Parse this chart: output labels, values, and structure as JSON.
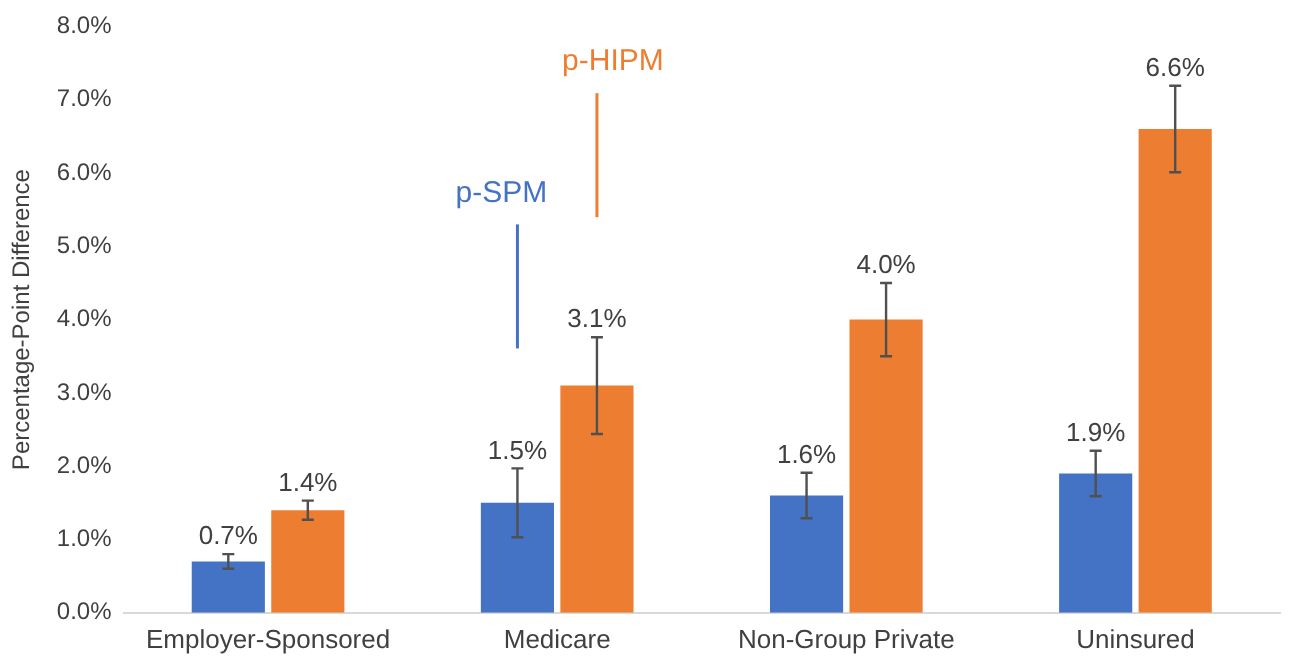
{
  "chart_data": {
    "type": "bar",
    "ylabel": "Percentage-Point Difference",
    "categories": [
      "Employer-Sponsored",
      "Medicare",
      "Non-Group Private",
      "Uninsured"
    ],
    "series": [
      {
        "name": "p-SPM",
        "color": "#4472c4",
        "values": [
          0.7,
          1.5,
          1.6,
          1.9
        ],
        "errors": [
          0.1,
          0.47,
          0.31,
          0.31
        ],
        "value_labels": [
          "0.7%",
          "1.5%",
          "1.6%",
          "1.9%"
        ]
      },
      {
        "name": "p-HIPM",
        "color": "#ed7d31",
        "values": [
          1.4,
          3.1,
          4.0,
          6.6
        ],
        "errors": [
          0.13,
          0.66,
          0.5,
          0.59
        ],
        "value_labels": [
          "1.4%",
          "3.1%",
          "4.0%",
          "6.6%"
        ]
      }
    ],
    "ylim": [
      0,
      8
    ],
    "yticks": [
      {
        "value": 0,
        "label": "0.0%"
      },
      {
        "value": 1,
        "label": "1.0%"
      },
      {
        "value": 2,
        "label": "2.0%"
      },
      {
        "value": 3,
        "label": "3.0%"
      },
      {
        "value": 4,
        "label": "4.0%"
      },
      {
        "value": 5,
        "label": "5.0%"
      },
      {
        "value": 6,
        "label": "6.0%"
      },
      {
        "value": 7,
        "label": "7.0%"
      },
      {
        "value": 8,
        "label": "8.0%"
      }
    ],
    "grid": false,
    "legend": false
  }
}
